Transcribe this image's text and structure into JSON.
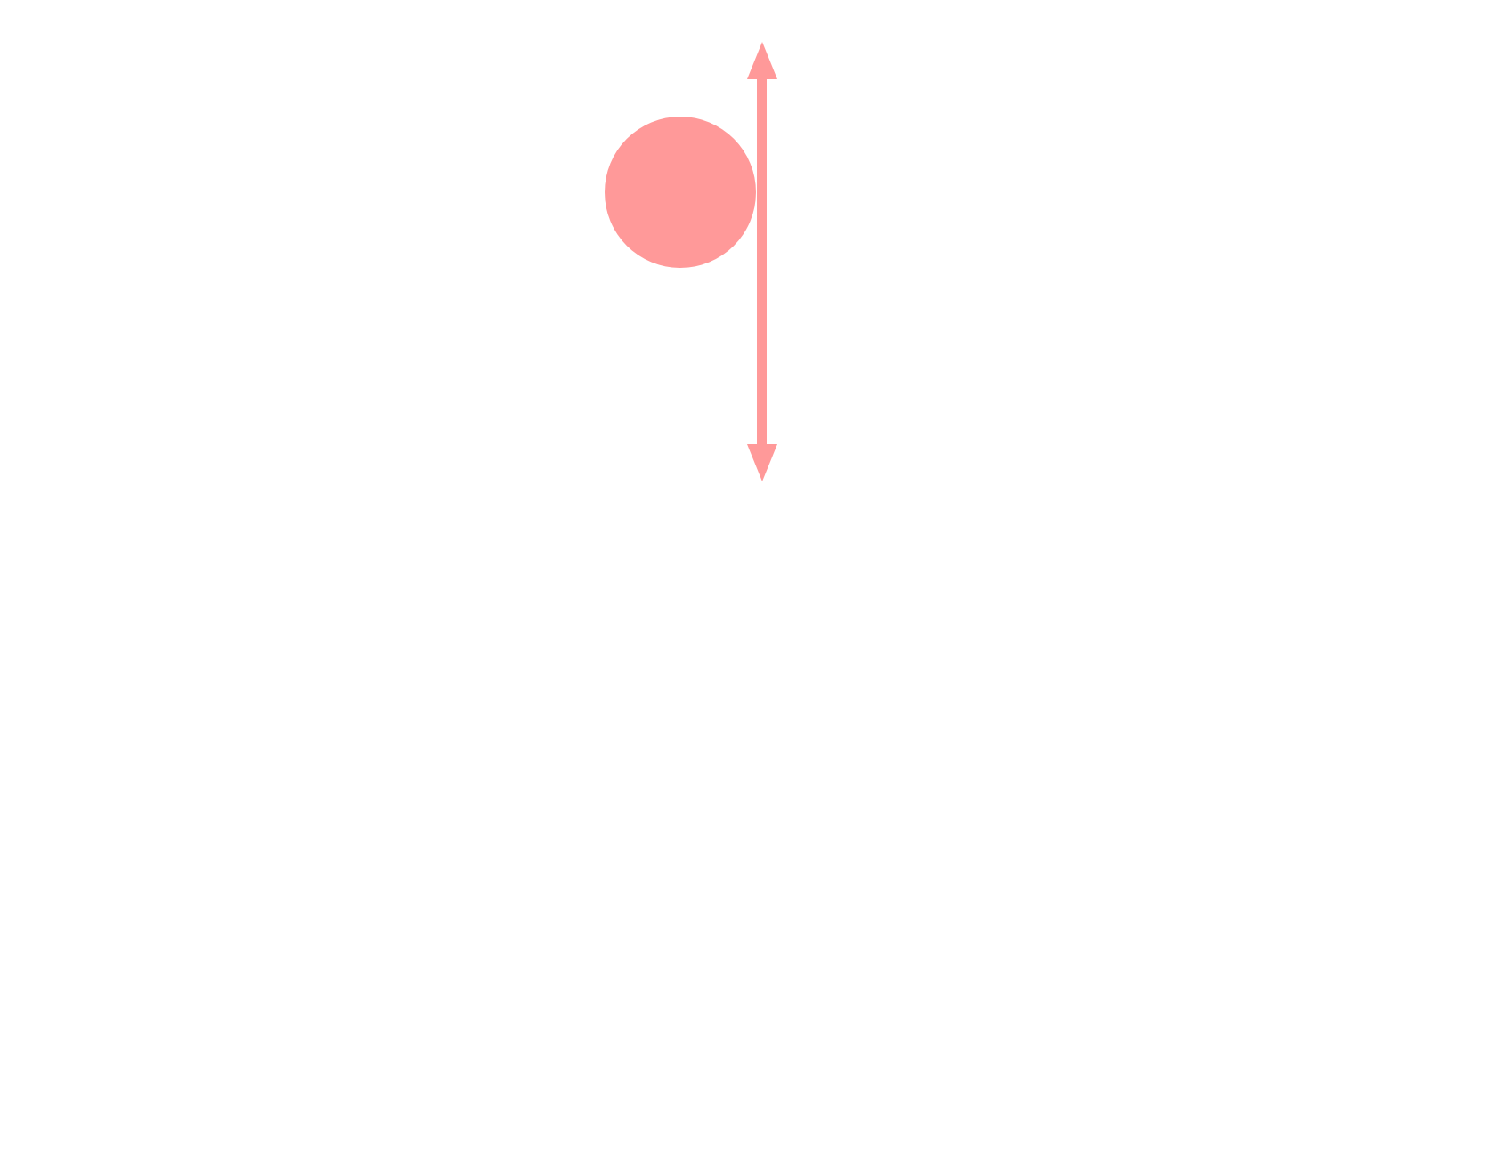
{
  "diagram": {
    "shapes": [
      {
        "kind": "circle",
        "icon": "filled-circle-icon",
        "color": "#ff9999"
      },
      {
        "kind": "double-arrow",
        "icon": "vertical-double-arrow-icon",
        "orientation": "vertical",
        "color": "#ff9999"
      }
    ]
  }
}
